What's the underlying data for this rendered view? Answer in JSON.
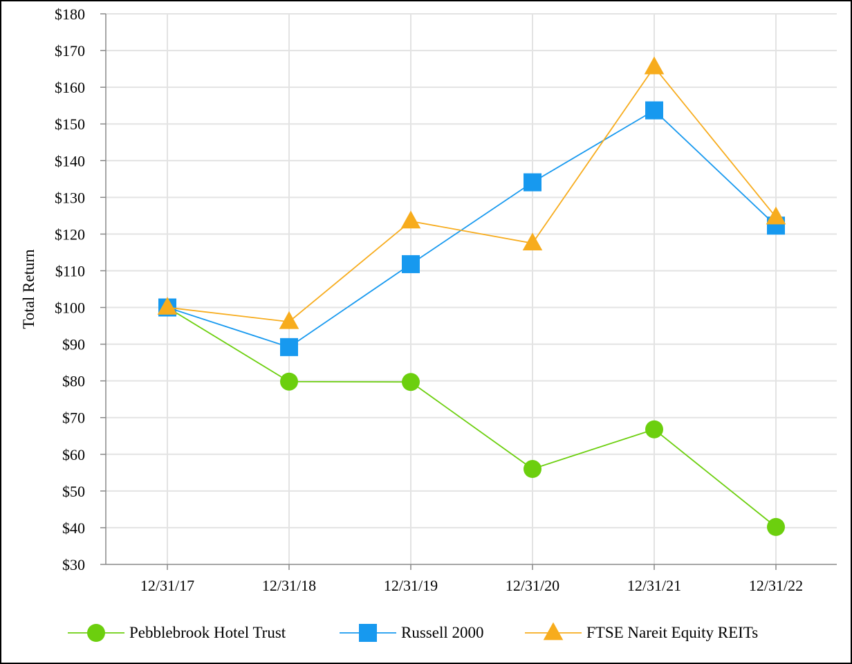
{
  "chart_data": {
    "type": "line",
    "title": "",
    "xlabel": "",
    "ylabel": "Total Return",
    "categories": [
      "12/31/17",
      "12/31/18",
      "12/31/19",
      "12/31/20",
      "12/31/21",
      "12/31/22"
    ],
    "ylim": [
      30,
      180
    ],
    "yticks": [
      30,
      40,
      50,
      60,
      70,
      80,
      90,
      100,
      110,
      120,
      130,
      140,
      150,
      160,
      170,
      180
    ],
    "ytick_labels": [
      "$30",
      "$40",
      "$50",
      "$60",
      "$70",
      "$80",
      "$90",
      "$100",
      "$110",
      "$120",
      "$130",
      "$140",
      "$150",
      "$160",
      "$170",
      "$180"
    ],
    "grid": true,
    "legend_position": "bottom",
    "series": [
      {
        "name": "Pebblebrook Hotel Trust",
        "marker": "circle",
        "color": "#6ccf0e",
        "values": [
          100,
          79.8,
          79.7,
          56,
          66.8,
          40.2
        ]
      },
      {
        "name": "Russell 2000",
        "marker": "square",
        "color": "#1799ef",
        "values": [
          100,
          89.2,
          111.8,
          134.1,
          153.7,
          122.3
        ]
      },
      {
        "name": "FTSE Nareit Equity REITs",
        "marker": "triangle",
        "color": "#f7ac1d",
        "values": [
          100,
          96.1,
          123.5,
          117.5,
          165.5,
          124.6
        ]
      }
    ]
  }
}
